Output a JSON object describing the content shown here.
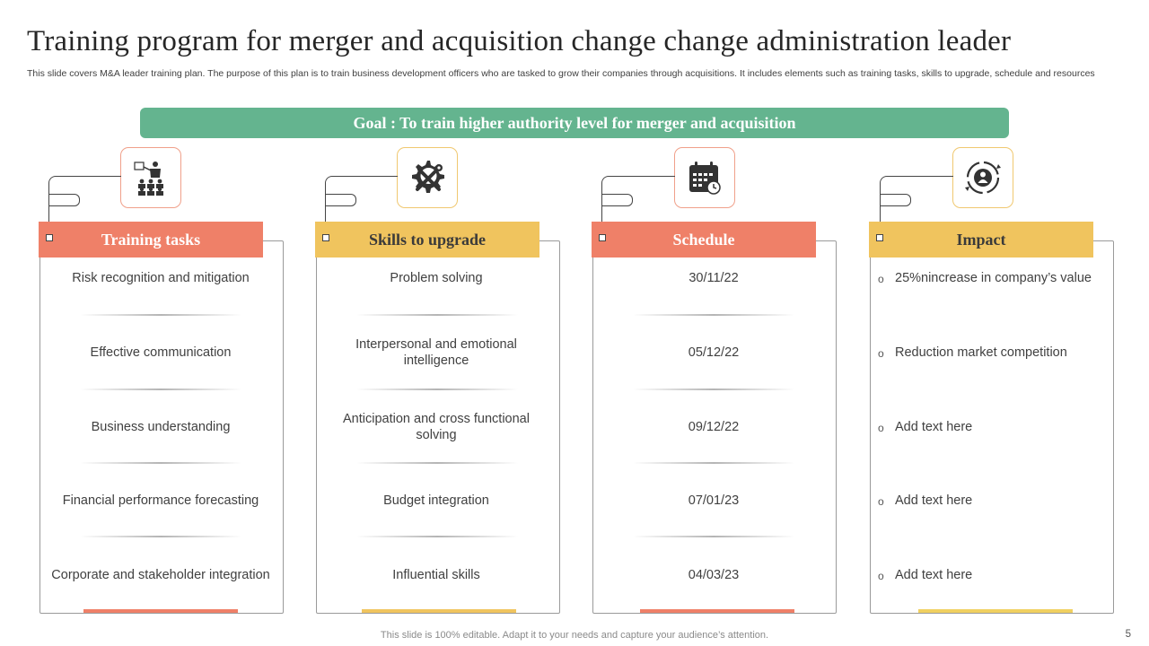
{
  "title": "Training program for merger and acquisition change change administration leader",
  "subtitle": "This slide covers M&A  leader training plan. The purpose of this plan is to train business development officers who are tasked to grow their companies through acquisitions. It includes elements such as training tasks, skills to upgrade, schedule and resources",
  "goal": "Goal : To train higher authority level for merger and acquisition",
  "columns": [
    {
      "header": "Training tasks",
      "icon": "presentation-icon",
      "items": [
        "Risk recognition and mitigation",
        "Effective communication",
        "Business understanding",
        "Financial performance forecasting",
        "Corporate and stakeholder integration"
      ]
    },
    {
      "header": "Skills to upgrade",
      "icon": "gear-tools-icon",
      "items": [
        "Problem solving",
        "Interpersonal and emotional intelligence",
        "Anticipation and cross functional solving",
        "Budget integration",
        "Influential  skills"
      ]
    },
    {
      "header": "Schedule",
      "icon": "calendar-icon",
      "items": [
        "30/11/22",
        "05/12/22",
        "09/12/22",
        "07/01/23",
        "04/03/23"
      ]
    },
    {
      "header": "Impact",
      "icon": "growth-cycle-icon",
      "bullet": "o",
      "items": [
        "25%nincrease in company’s value",
        "Reduction market competition",
        "Add text here",
        "Add text here",
        "Add text here"
      ]
    }
  ],
  "colors": {
    "goal": "#64b48f",
    "orange": "#ef8068",
    "yellow": "#f0c45e"
  },
  "footer": "This slide is 100% editable. Adapt it to your needs and capture your audience’s attention.",
  "page_number": "5"
}
